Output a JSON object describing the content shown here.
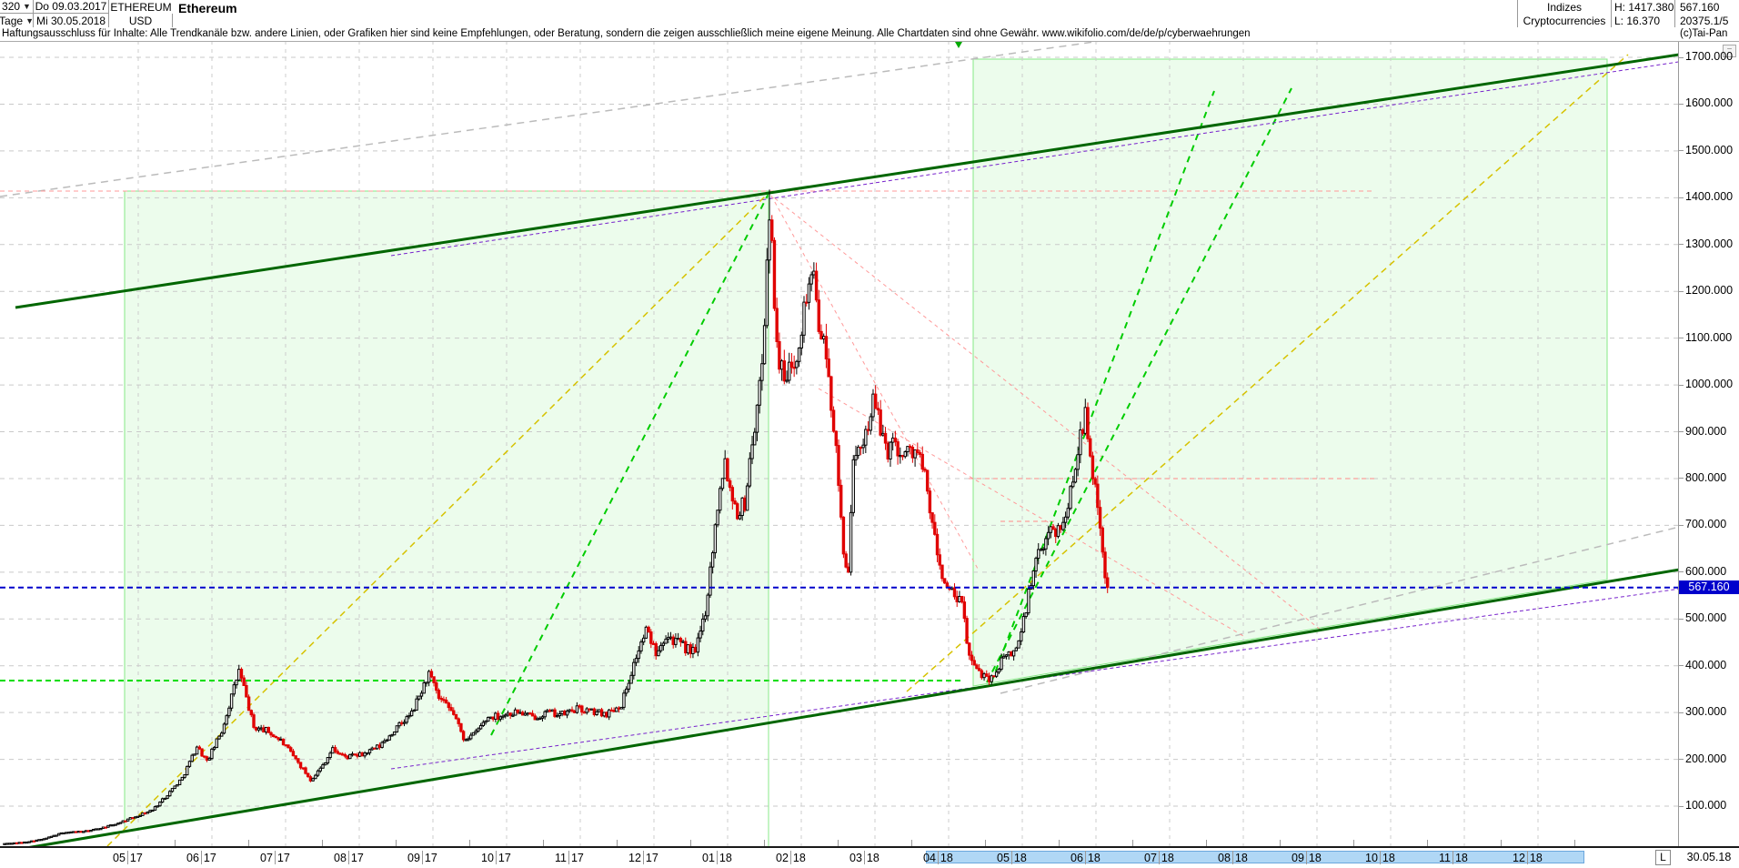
{
  "header": {
    "left": {
      "bars_value": "320",
      "period_unit": "Tage",
      "date_start": "Do 09.03.2017",
      "date_end": "Mi 30.05.2018",
      "symbol": "ETHEREUM",
      "currency": "USD",
      "title": "Ethereum"
    },
    "right": {
      "category_line1": "Indizes",
      "category_line2": "Cryptocurrencies",
      "high_label": "H: 1417.380",
      "low_label": "L: 16.370",
      "last_price": "567.160",
      "secondary_value": "20375.1/5",
      "copyright": "(c)Tai-Pan"
    }
  },
  "disclaimer": "Haftungsausschluss für Inhalte: Alle Trendkanäle bzw. andere Linien, oder Grafiken hier sind keine Empfehlungen, oder Beratung, sondern die zeigen ausschließlich meine eigene Meinung. Alle Chartdaten sind ohne Gewähr.  www.wikifolio.com/de/de/p/cyberwaehrungen",
  "axes": {
    "y_labels": [
      "1700.000",
      "1600.000",
      "1500.000",
      "1400.000",
      "1300.000",
      "1200.000",
      "1100.000",
      "1000.000",
      "900.000",
      "800.000",
      "700.000",
      "600.000",
      "500.000",
      "400.000",
      "300.000",
      "200.000",
      "100.000"
    ],
    "x_labels": [
      {
        "m": "05",
        "y": "17"
      },
      {
        "m": "06",
        "y": "17"
      },
      {
        "m": "07",
        "y": "17"
      },
      {
        "m": "08",
        "y": "17"
      },
      {
        "m": "09",
        "y": "17"
      },
      {
        "m": "10",
        "y": "17"
      },
      {
        "m": "11",
        "y": "17"
      },
      {
        "m": "12",
        "y": "17"
      },
      {
        "m": "01",
        "y": "18"
      },
      {
        "m": "02",
        "y": "18"
      },
      {
        "m": "03",
        "y": "18"
      },
      {
        "m": "04",
        "y": "18"
      },
      {
        "m": "05",
        "y": "18"
      },
      {
        "m": "06",
        "y": "18"
      },
      {
        "m": "07",
        "y": "18"
      },
      {
        "m": "08",
        "y": "18"
      },
      {
        "m": "09",
        "y": "18"
      },
      {
        "m": "10",
        "y": "18"
      },
      {
        "m": "11",
        "y": "18"
      },
      {
        "m": "12",
        "y": "18"
      }
    ],
    "highlighted_x_labels": [
      "04.18",
      "05.18",
      "06.18",
      "07.18",
      "08.18",
      "09.18",
      "10.18",
      "11.18",
      "12.18"
    ],
    "scale_marker": "L",
    "bottom_right_date": "30.05.18"
  },
  "price_marker": {
    "value": "567.160",
    "bg_color": "#0000cc",
    "text_color": "#ffffff"
  },
  "minimize_icon_glyph": "−",
  "chart_data": {
    "type": "candlestick",
    "title": "Ethereum",
    "symbol": "ETHEREUM",
    "currency": "USD",
    "timeframe": "Tage (daily), 320 bars",
    "visible_date_range": {
      "from": "09.03.2017",
      "to": "30.05.2018"
    },
    "period_high": 1417.38,
    "period_low": 16.37,
    "last_close": 567.16,
    "y_axis": {
      "min": 100,
      "max": 1700,
      "step": 100,
      "unit": "USD"
    },
    "grid": true,
    "up_candle_style": {
      "stroke": "#000000",
      "fill": "#ffffff"
    },
    "down_candle_style": {
      "stroke": "#e00000",
      "fill": "#e00000"
    },
    "price_path_anchors_day_price": [
      [
        0,
        20
      ],
      [
        8,
        23
      ],
      [
        16,
        30
      ],
      [
        24,
        44
      ],
      [
        34,
        47
      ],
      [
        44,
        60
      ],
      [
        53,
        78
      ],
      [
        60,
        92
      ],
      [
        66,
        125
      ],
      [
        72,
        160
      ],
      [
        78,
        228
      ],
      [
        82,
        195
      ],
      [
        88,
        260
      ],
      [
        95,
        390
      ],
      [
        97,
        352
      ],
      [
        101,
        268
      ],
      [
        106,
        262
      ],
      [
        112,
        240
      ],
      [
        118,
        200
      ],
      [
        124,
        157
      ],
      [
        128,
        180
      ],
      [
        133,
        222
      ],
      [
        138,
        205
      ],
      [
        145,
        210
      ],
      [
        152,
        228
      ],
      [
        158,
        262
      ],
      [
        165,
        298
      ],
      [
        172,
        383
      ],
      [
        176,
        330
      ],
      [
        182,
        298
      ],
      [
        186,
        245
      ],
      [
        190,
        252
      ],
      [
        196,
        290
      ],
      [
        202,
        295
      ],
      [
        208,
        302
      ],
      [
        214,
        290
      ],
      [
        220,
        300
      ],
      [
        226,
        296
      ],
      [
        232,
        308
      ],
      [
        238,
        302
      ],
      [
        244,
        298
      ],
      [
        250,
        318
      ],
      [
        256,
        420
      ],
      [
        260,
        475
      ],
      [
        264,
        432
      ],
      [
        268,
        468
      ],
      [
        272,
        452
      ],
      [
        276,
        438
      ],
      [
        280,
        428
      ],
      [
        284,
        518
      ],
      [
        287,
        650
      ],
      [
        290,
        790
      ],
      [
        292,
        840
      ],
      [
        294,
        780
      ],
      [
        297,
        730
      ],
      [
        300,
        748
      ],
      [
        303,
        880
      ],
      [
        306,
        985
      ],
      [
        308,
        1150
      ],
      [
        310,
        1385
      ],
      [
        312,
        1180
      ],
      [
        314,
        1050
      ],
      [
        316,
        1005
      ],
      [
        318,
        1030
      ],
      [
        321,
        1075
      ],
      [
        324,
        1160
      ],
      [
        327,
        1250
      ],
      [
        330,
        1140
      ],
      [
        333,
        1050
      ],
      [
        336,
        920
      ],
      [
        338,
        780
      ],
      [
        340,
        640
      ],
      [
        342,
        610
      ],
      [
        344,
        820
      ],
      [
        347,
        870
      ],
      [
        350,
        920
      ],
      [
        352,
        968
      ],
      [
        355,
        905
      ],
      [
        358,
        862
      ],
      [
        361,
        880
      ],
      [
        364,
        845
      ],
      [
        367,
        862
      ],
      [
        370,
        858
      ],
      [
        373,
        800
      ],
      [
        376,
        700
      ],
      [
        379,
        610
      ],
      [
        382,
        565
      ],
      [
        385,
        548
      ],
      [
        388,
        530
      ],
      [
        391,
        420
      ],
      [
        394,
        388
      ],
      [
        397,
        382
      ],
      [
        400,
        372
      ],
      [
        403,
        400
      ],
      [
        406,
        422
      ],
      [
        409,
        428
      ],
      [
        412,
        470
      ],
      [
        415,
        552
      ],
      [
        418,
        625
      ],
      [
        421,
        648
      ],
      [
        424,
        705
      ],
      [
        427,
        685
      ],
      [
        430,
        720
      ],
      [
        433,
        800
      ],
      [
        436,
        905
      ],
      [
        438,
        930
      ],
      [
        439,
        880
      ],
      [
        440,
        840
      ],
      [
        442,
        790
      ],
      [
        444,
        700
      ],
      [
        445,
        640
      ],
      [
        446,
        580
      ],
      [
        447,
        567.16
      ]
    ],
    "overlays": {
      "current_price_line": {
        "value": 567.16,
        "style": "blue dashed horizontal"
      },
      "all_time_high_line": {
        "value": 1417.38,
        "style": "pink dashed horizontal"
      },
      "resistance_line": {
        "value": 800,
        "style": "short pink dashed horizontal"
      },
      "support_line": {
        "value": 370,
        "style": "green dashed horizontal"
      },
      "trend_channel": "rising dark green channel (thick) with parallel purple dashed lines",
      "shaded_boxes": "two light-green channel boxes (May17–Jan18 top 1417, Apr18–Dec18)",
      "fan_lines": "pink dashed fan down from Jan-2018 peak; green dashed steep uptrend lines from lows to peak; olive dashed long uptrend lines; gray dashed long-term lines"
    }
  }
}
